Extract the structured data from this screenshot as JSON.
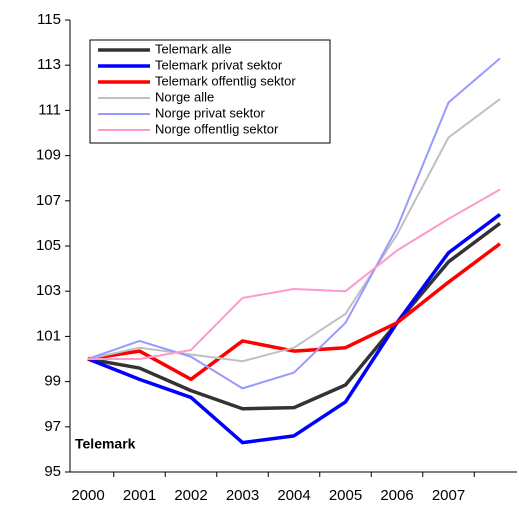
{
  "chart_data": {
    "type": "line",
    "categories": [
      "2000",
      "2001",
      "2002",
      "2003",
      "2004",
      "2005",
      "2006",
      "2007",
      null
    ],
    "series": [
      {
        "name": "Telemark alle",
        "color": "#333333",
        "values": [
          100,
          99.6,
          98.6,
          97.8,
          97.85,
          98.85,
          101.6,
          104.3,
          106.0
        ]
      },
      {
        "name": "Telemark privat sektor",
        "color": "#0000ff",
        "values": [
          100,
          99.1,
          98.3,
          96.3,
          96.6,
          98.1,
          101.6,
          104.7,
          106.4
        ]
      },
      {
        "name": "Telemark offentlig sektor",
        "color": "#ff0000",
        "values": [
          100,
          100.35,
          99.1,
          100.8,
          100.35,
          100.5,
          101.6,
          103.4,
          105.1
        ]
      },
      {
        "name": "Norge alle",
        "color": "#c0c0c0",
        "values": [
          100,
          100.5,
          100.2,
          99.9,
          100.5,
          102.0,
          105.5,
          109.8,
          111.5
        ]
      },
      {
        "name": "Norge privat sektor",
        "color": "#9999ff",
        "values": [
          100,
          100.8,
          100.1,
          98.7,
          99.4,
          101.6,
          105.8,
          111.35,
          113.3
        ]
      },
      {
        "name": "Norge offentlig sektor",
        "color": "#ff99cc",
        "values": [
          100,
          100.0,
          100.4,
          102.7,
          103.1,
          103.0,
          104.8,
          106.2,
          107.5
        ]
      }
    ],
    "ylim": [
      95,
      115
    ],
    "yticks": [
      95,
      97,
      99,
      101,
      103,
      105,
      107,
      109,
      111,
      113,
      115
    ],
    "annotation": "Telemark",
    "legend": "upper left"
  }
}
